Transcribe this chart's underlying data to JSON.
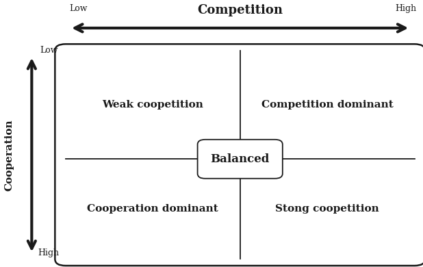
{
  "title_competition": "Competition",
  "label_low_competition": "Low",
  "label_high_competition": "High",
  "label_cooperation": "Cooperation",
  "label_low_cooperation": "Low",
  "label_high_cooperation": "High",
  "quadrant_labels": {
    "top_left": "Weak coopetition",
    "top_right": "Competition dominant",
    "bottom_left": "Cooperation dominant",
    "bottom_right": "Stong coopetition"
  },
  "center_label": "Balanced",
  "background_color": "#ffffff",
  "box_color": "#1a1a1a",
  "text_color": "#1a1a1a",
  "arrow_color": "#1a1a1a",
  "fig_width": 6.18,
  "fig_height": 3.9,
  "dpi": 100
}
